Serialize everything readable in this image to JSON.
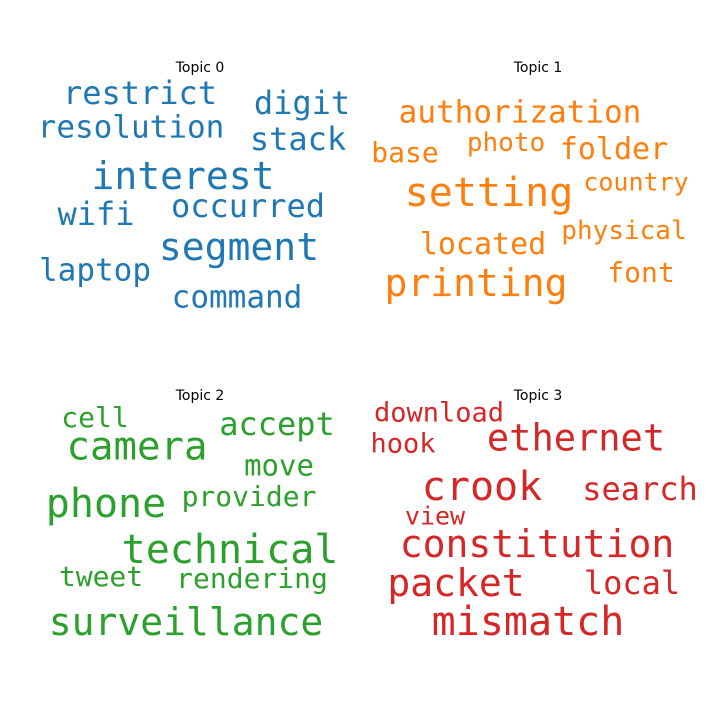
{
  "chart_data": [
    {
      "type": "wordcloud",
      "title": "Topic 0",
      "color": "#1f77b4",
      "words": [
        "restrict",
        "digit",
        "resolution",
        "stack",
        "interest",
        "wifi",
        "occurred",
        "segment",
        "laptop",
        "command"
      ]
    },
    {
      "type": "wordcloud",
      "title": "Topic 1",
      "color": "#ff7f0e",
      "words": [
        "authorization",
        "photo",
        "base",
        "folder",
        "setting",
        "country",
        "physical",
        "located",
        "printing",
        "font"
      ]
    },
    {
      "type": "wordcloud",
      "title": "Topic 2",
      "color": "#2ca02c",
      "words": [
        "cell",
        "accept",
        "camera",
        "move",
        "phone",
        "provider",
        "technical",
        "tweet",
        "rendering",
        "surveillance"
      ]
    },
    {
      "type": "wordcloud",
      "title": "Topic 3",
      "color": "#d62728",
      "words": [
        "download",
        "hook",
        "ethernet",
        "crook",
        "search",
        "view",
        "constitution",
        "packet",
        "local",
        "mismatch"
      ]
    }
  ]
}
